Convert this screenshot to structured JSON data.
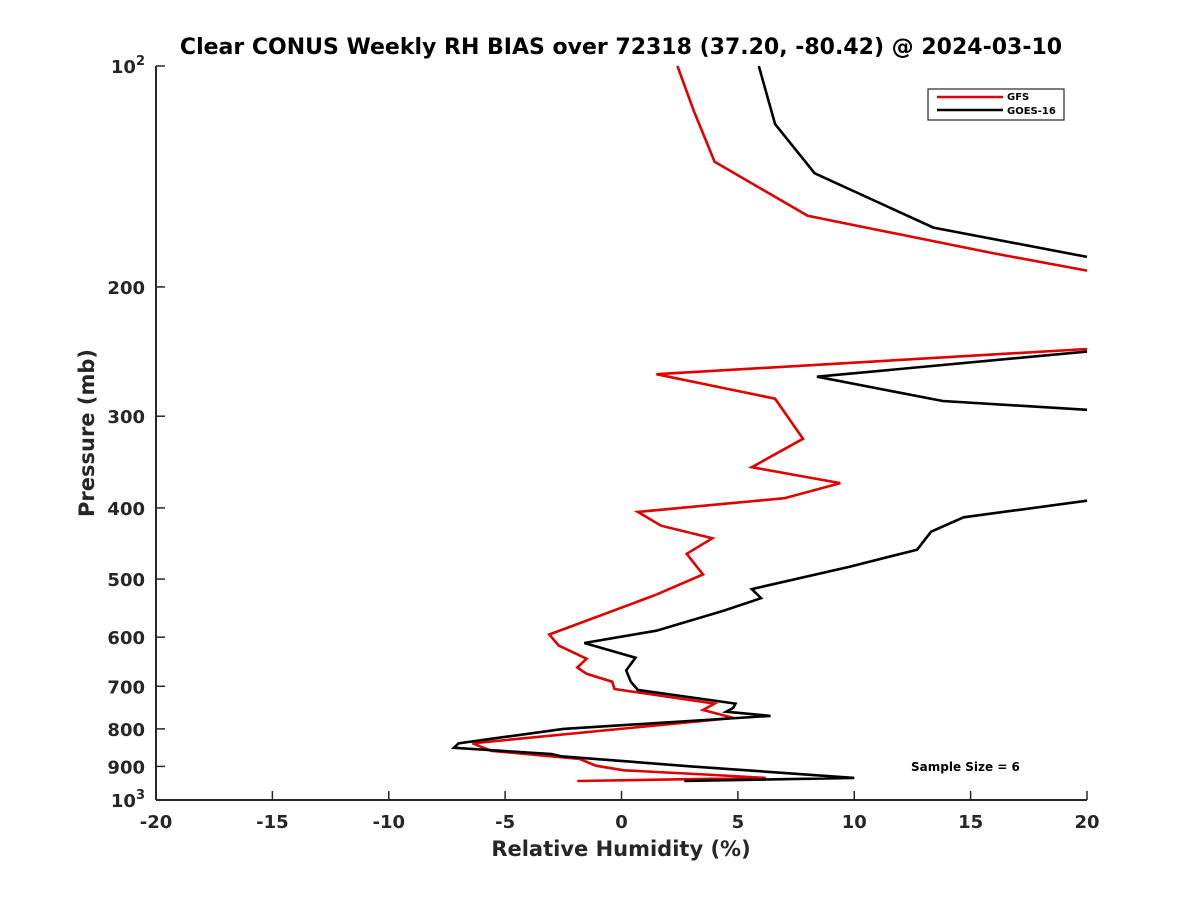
{
  "chart_data": {
    "type": "line",
    "title": "Clear CONUS Weekly RH BIAS over 72318 (37.20, -80.42) @ 2024-03-10",
    "xlabel": "Relative Humidity (%)",
    "ylabel": "Pressure (mb)",
    "xlim": [
      -20,
      20
    ],
    "ylim": [
      100,
      1000
    ],
    "y_scale": "log",
    "y_reversed": true,
    "grid": false,
    "legend_position": "top-right",
    "x_ticks": [
      "-20",
      "-15",
      "-10",
      "-5",
      "0",
      "5",
      "10",
      "15",
      "20"
    ],
    "y_ticks": [
      {
        "value": 100,
        "base": "10",
        "exp": "2"
      },
      {
        "value": 200,
        "label": "200"
      },
      {
        "value": 300,
        "label": "300"
      },
      {
        "value": 400,
        "label": "400"
      },
      {
        "value": 500,
        "label": "500"
      },
      {
        "value": 600,
        "label": "600"
      },
      {
        "value": 700,
        "label": "700"
      },
      {
        "value": 800,
        "label": "800"
      },
      {
        "value": 900,
        "label": "900"
      },
      {
        "value": 1000,
        "base": "10",
        "exp": "3"
      }
    ],
    "annotation": "Sample Size = 6",
    "series": [
      {
        "name": "GFS",
        "color": "#e00000",
        "segments": [
          [
            [
              2.4,
              100
            ],
            [
              3.1,
              115
            ],
            [
              4.0,
              135
            ],
            [
              8.0,
              160
            ],
            [
              16.0,
              180
            ],
            [
              20.0,
              190
            ]
          ],
          [
            [
              20.0,
              243
            ],
            [
              1.5,
              263
            ],
            [
              6.6,
              284
            ],
            [
              7.8,
              322
            ],
            [
              5.6,
              352
            ],
            [
              9.4,
              370
            ],
            [
              7.0,
              388
            ],
            [
              0.7,
              405
            ],
            [
              1.7,
              423
            ],
            [
              3.9,
              440
            ],
            [
              2.8,
              462
            ],
            [
              3.5,
              493
            ],
            [
              1.5,
              525
            ],
            [
              -3.1,
              595
            ],
            [
              -2.7,
              616
            ],
            [
              -1.5,
              642
            ],
            [
              -1.9,
              660
            ],
            [
              -1.5,
              673
            ],
            [
              -0.4,
              690
            ],
            [
              -0.3,
              706
            ],
            [
              4.0,
              739
            ],
            [
              3.5,
              754
            ],
            [
              4.8,
              773
            ],
            [
              -6.4,
              837
            ],
            [
              -5.6,
              857
            ],
            [
              -1.8,
              879
            ],
            [
              -1.1,
              898
            ],
            [
              0.1,
              911
            ],
            [
              3.6,
              923
            ],
            [
              6.2,
              933
            ],
            [
              -1.9,
              942
            ]
          ]
        ]
      },
      {
        "name": "GOES-16",
        "color": "#000000",
        "segments": [
          [
            [
              5.9,
              100
            ],
            [
              6.6,
              120
            ],
            [
              8.3,
              140
            ],
            [
              13.4,
              166
            ],
            [
              20.0,
              182
            ]
          ],
          [
            [
              20.0,
              245
            ],
            [
              8.4,
              265
            ],
            [
              13.8,
              286
            ],
            [
              20.0,
              294
            ]
          ],
          [
            [
              20.0,
              391
            ],
            [
              14.7,
              412
            ],
            [
              13.3,
              431
            ],
            [
              12.7,
              456
            ],
            [
              9.8,
              481
            ],
            [
              5.6,
              516
            ],
            [
              6.0,
              531
            ],
            [
              4.4,
              552
            ],
            [
              1.5,
              588
            ],
            [
              -1.6,
              611
            ],
            [
              0.6,
              640
            ],
            [
              0.2,
              666
            ],
            [
              0.4,
              690
            ],
            [
              0.7,
              708
            ],
            [
              4.9,
              739
            ],
            [
              4.8,
              749
            ],
            [
              4.5,
              758
            ],
            [
              6.4,
              768
            ],
            [
              -2.5,
              800
            ],
            [
              -7.0,
              837
            ],
            [
              -7.2,
              849
            ],
            [
              -3.0,
              866
            ],
            [
              -2.6,
              872
            ],
            [
              3.0,
              900
            ],
            [
              10.0,
              933
            ],
            [
              2.7,
              942
            ]
          ]
        ]
      }
    ]
  }
}
